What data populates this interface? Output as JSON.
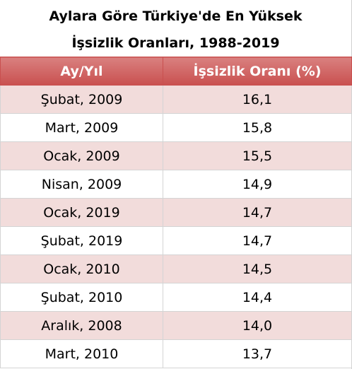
{
  "header": {
    "title": "Aylara Göre Türkiye'de En Yüksek İşsizlik Oranları, 1988-2019"
  },
  "table": {
    "columns": [
      "Ay/Yıl",
      "İşsizlik Oranı (%)"
    ],
    "rows": [
      [
        "Şubat, 2009",
        "16,1"
      ],
      [
        "Mart, 2009",
        "15,8"
      ],
      [
        "Ocak, 2009",
        "15,5"
      ],
      [
        "Nisan, 2009",
        "14,9"
      ],
      [
        "Ocak, 2019",
        "14,7"
      ],
      [
        "Şubat, 2019",
        "14,7"
      ],
      [
        "Ocak, 2010",
        "14,5"
      ],
      [
        "Şubat, 2010",
        "14,4"
      ],
      [
        "Aralık, 2008",
        "14,0"
      ],
      [
        "Mart, 2010",
        "13,7"
      ]
    ]
  }
}
